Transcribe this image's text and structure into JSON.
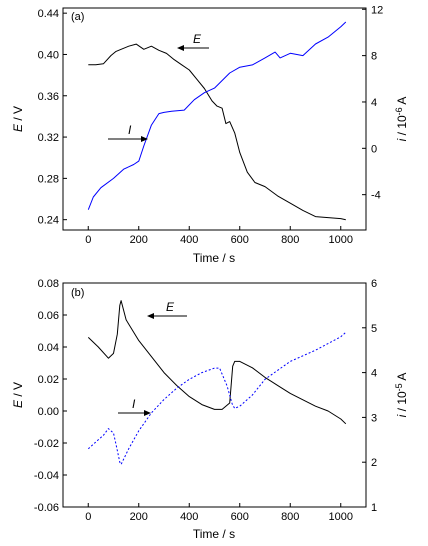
{
  "chart_data": [
    {
      "type": "line",
      "panel_label": "(a)",
      "xlabel": "Time / s",
      "ylabel_left_italic": "E",
      "ylabel_left_unit": " / V",
      "ylabel_right_italic": "i",
      "ylabel_right_unit": " / 10",
      "ylabel_right_exp": "-6",
      "ylabel_right_tail": " A",
      "xlim": [
        -100,
        1100
      ],
      "ylim_left": [
        0.23,
        0.445
      ],
      "ylim_right": [
        -7.05,
        12.11
      ],
      "xticks": [
        0,
        200,
        400,
        600,
        800,
        1000
      ],
      "xtick_labels": [
        "0",
        "200",
        "400",
        "600",
        "800",
        "1000"
      ],
      "yticks_left": [
        0.24,
        0.28,
        0.32,
        0.36,
        0.4,
        0.44
      ],
      "ytick_labels_left": [
        "0.24",
        "0.28",
        "0.32",
        "0.36",
        "0.40",
        "0.44"
      ],
      "yticks_right": [
        -4,
        0,
        4,
        8,
        12
      ],
      "ytick_labels_right": [
        "-4",
        "0",
        "4",
        "8",
        "12"
      ],
      "annotations": [
        {
          "label": "E",
          "series": "E",
          "x": 400,
          "y": 0.402
        },
        {
          "label": "I",
          "series": "I",
          "x": 185,
          "y": 0.318
        }
      ],
      "series": [
        {
          "key": "E",
          "axis": "left",
          "color": "#000000",
          "dashed": false,
          "x": [
            0,
            30,
            60,
            90,
            110,
            130,
            160,
            190,
            220,
            250,
            280,
            310,
            340,
            370,
            400,
            430,
            460,
            490,
            510,
            530,
            545,
            560,
            580,
            600,
            630,
            660,
            700,
            750,
            800,
            850,
            900,
            950,
            1000,
            1020
          ],
          "y": [
            0.39,
            0.39,
            0.391,
            0.399,
            0.403,
            0.405,
            0.408,
            0.41,
            0.405,
            0.408,
            0.404,
            0.401,
            0.395,
            0.39,
            0.385,
            0.376,
            0.367,
            0.355,
            0.35,
            0.348,
            0.333,
            0.335,
            0.324,
            0.305,
            0.286,
            0.276,
            0.272,
            0.263,
            0.256,
            0.249,
            0.243,
            0.242,
            0.241,
            0.24
          ]
        },
        {
          "key": "I",
          "axis": "right",
          "color": "#0000ff",
          "dashed": false,
          "x": [
            0,
            20,
            50,
            100,
            140,
            180,
            200,
            220,
            250,
            280,
            300,
            330,
            380,
            420,
            460,
            500,
            560,
            600,
            650,
            700,
            740,
            760,
            800,
            850,
            900,
            950,
            1000,
            1020
          ],
          "y": [
            -5.3,
            -4.2,
            -3.4,
            -2.6,
            -1.8,
            -1.4,
            -1.1,
            0.2,
            2.0,
            3.0,
            3.1,
            3.2,
            3.3,
            4.2,
            4.8,
            5.2,
            6.5,
            7.0,
            7.2,
            7.8,
            8.3,
            7.8,
            8.2,
            8.0,
            9.0,
            9.6,
            10.5,
            10.9
          ]
        }
      ]
    },
    {
      "type": "line",
      "panel_label": "(b)",
      "xlabel": "Time / s",
      "ylabel_left_italic": "E",
      "ylabel_left_unit": " / V",
      "ylabel_right_italic": "i",
      "ylabel_right_unit": " / 10",
      "ylabel_right_exp": "-5",
      "ylabel_right_tail": " A",
      "xlim": [
        -100,
        1100
      ],
      "ylim_left": [
        -0.06,
        0.08
      ],
      "ylim_right": [
        1,
        6
      ],
      "xticks": [
        0,
        200,
        400,
        600,
        800,
        1000
      ],
      "xtick_labels": [
        "0",
        "200",
        "400",
        "600",
        "800",
        "1000"
      ],
      "yticks_left": [
        -0.06,
        -0.04,
        -0.02,
        0.0,
        0.02,
        0.04,
        0.06,
        0.08
      ],
      "ytick_labels_left": [
        "-0.06",
        "-0.04",
        "-0.02",
        "0.00",
        "0.02",
        "0.04",
        "0.06",
        "0.08"
      ],
      "yticks_right": [
        1,
        2,
        3,
        4,
        5,
        6
      ],
      "ytick_labels_right": [
        "1",
        "2",
        "3",
        "4",
        "5",
        "6"
      ],
      "annotations": [
        {
          "label": "E",
          "series": "E",
          "x": 290,
          "y": 0.059
        },
        {
          "label": "I",
          "series": "I",
          "x": 170,
          "y": 2.95
        }
      ],
      "series": [
        {
          "key": "E",
          "axis": "left",
          "color": "#000000",
          "dashed": false,
          "x": [
            0,
            40,
            80,
            100,
            115,
            125,
            130,
            150,
            200,
            250,
            300,
            350,
            400,
            450,
            500,
            530,
            560,
            572,
            580,
            600,
            650,
            700,
            750,
            800,
            850,
            900,
            950,
            1000,
            1020
          ],
          "y": [
            0.046,
            0.04,
            0.033,
            0.036,
            0.048,
            0.066,
            0.069,
            0.057,
            0.044,
            0.034,
            0.024,
            0.016,
            0.009,
            0.004,
            0.001,
            0.001,
            0.005,
            0.028,
            0.031,
            0.031,
            0.027,
            0.021,
            0.016,
            0.011,
            0.007,
            0.003,
            0.0,
            -0.005,
            -0.008
          ]
        },
        {
          "key": "I",
          "axis": "right",
          "color": "#0000ff",
          "dashed": true,
          "x": [
            0,
            30,
            60,
            80,
            100,
            110,
            125,
            130,
            160,
            200,
            250,
            300,
            350,
            400,
            450,
            500,
            520,
            550,
            570,
            580,
            600,
            650,
            700,
            800,
            900,
            1000,
            1020
          ],
          "y": [
            2.3,
            2.45,
            2.6,
            2.75,
            2.65,
            2.4,
            2.0,
            1.95,
            2.3,
            2.7,
            3.1,
            3.4,
            3.65,
            3.85,
            4.0,
            4.1,
            4.1,
            3.7,
            3.3,
            3.2,
            3.25,
            3.5,
            3.85,
            4.25,
            4.5,
            4.8,
            4.9
          ]
        }
      ]
    }
  ]
}
